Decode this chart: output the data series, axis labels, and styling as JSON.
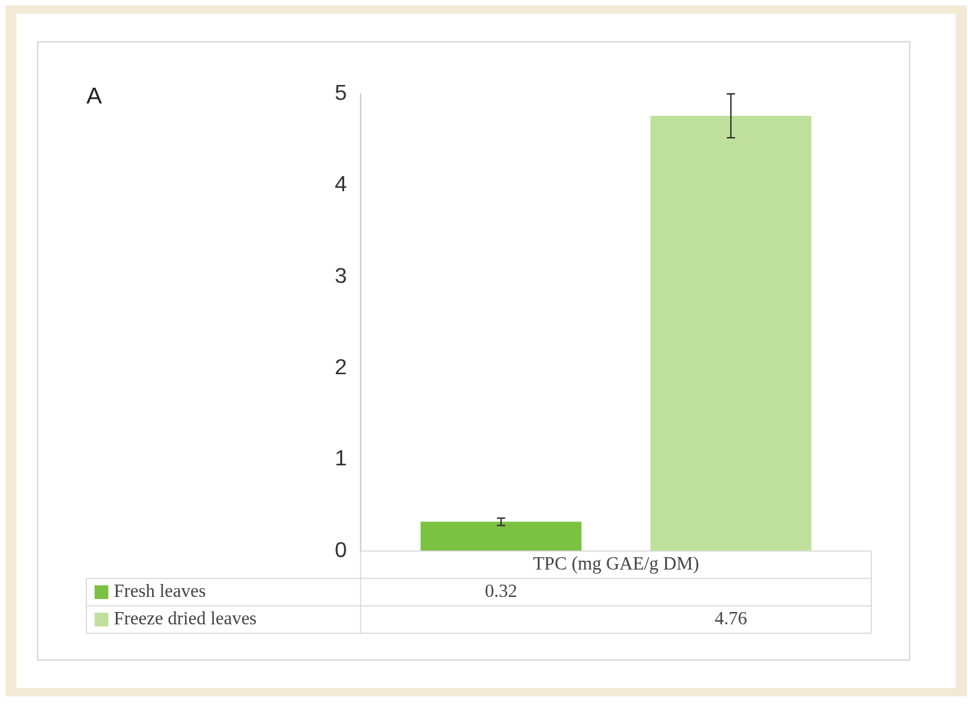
{
  "chart_data": {
    "type": "bar",
    "categories": [
      "TPC (mg GAE/g DM)"
    ],
    "series": [
      {
        "name": "Fresh leaves",
        "color": "#7cc242",
        "values": [
          0.32
        ],
        "errors": [
          0.04
        ]
      },
      {
        "name": "Freeze dried leaves",
        "color": "#bfe09c",
        "values": [
          4.76
        ],
        "errors": [
          0.24
        ]
      }
    ],
    "ylim": [
      0,
      5
    ],
    "yticks": [
      0,
      1,
      2,
      3,
      4,
      5
    ],
    "data_labels": true,
    "legend": "bottom",
    "annotations": [
      "A"
    ]
  }
}
